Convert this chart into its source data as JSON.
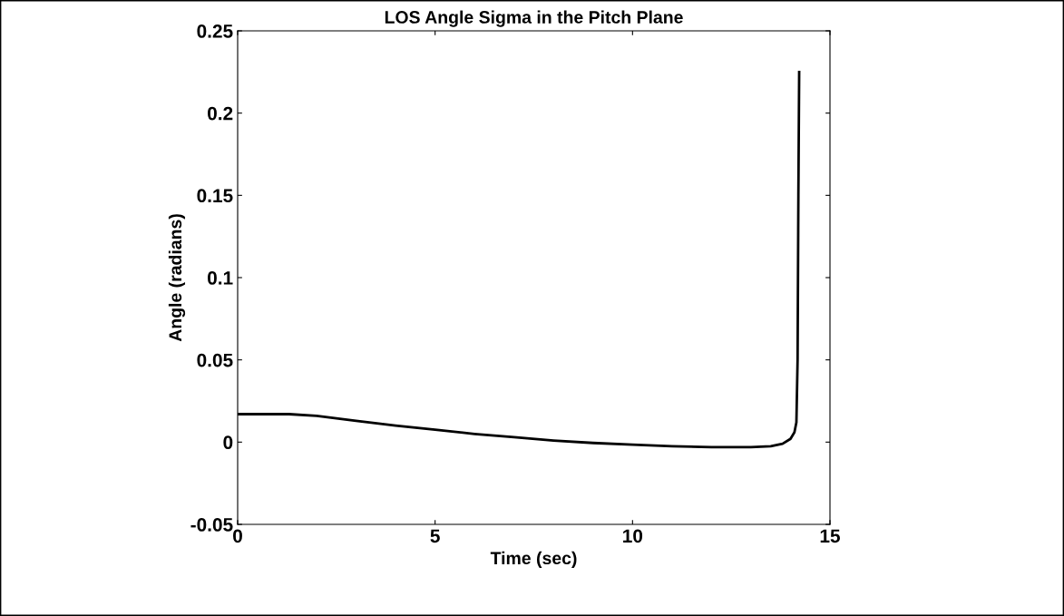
{
  "chart_data": {
    "type": "line",
    "title": "LOS Angle Sigma in the Pitch Plane",
    "xlabel": "Time (sec)",
    "ylabel": "Angle (radians)",
    "series": [
      {
        "color": "#000000",
        "x": [
          0,
          1.3,
          2,
          3,
          4,
          5,
          6,
          7,
          8,
          9,
          10,
          11,
          12,
          13,
          13.5,
          13.8,
          14.0,
          14.1,
          14.15,
          14.18,
          14.2,
          14.22
        ],
        "values": [
          0.017,
          0.017,
          0.016,
          0.013,
          0.01,
          0.0075,
          0.005,
          0.003,
          0.001,
          -0.0005,
          -0.0015,
          -0.0025,
          -0.003,
          -0.003,
          -0.0025,
          -0.001,
          0.002,
          0.006,
          0.012,
          0.05,
          0.15,
          0.225
        ]
      }
    ],
    "xlim": [
      0,
      15
    ],
    "xticks": [
      0,
      5,
      10,
      15
    ],
    "ylim": [
      -0.05,
      0.25
    ],
    "yticks": [
      -0.05,
      0,
      0.05,
      0.1,
      0.15,
      0.2,
      0.25
    ],
    "grid": false,
    "legend": false
  }
}
